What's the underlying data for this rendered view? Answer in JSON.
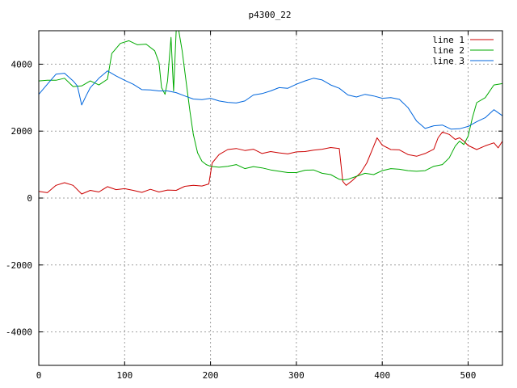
{
  "chart_data": {
    "type": "line",
    "title": "p4300_22",
    "xlim": [
      0,
      540
    ],
    "ylim": [
      -5000,
      5000
    ],
    "x_ticks": [
      0,
      100,
      200,
      300,
      400,
      500
    ],
    "y_ticks": [
      -4000,
      -2000,
      0,
      2000,
      4000
    ],
    "grid": true,
    "legend_position": "top-right",
    "series": [
      {
        "name": "line 1",
        "color": "#cc0000",
        "points": [
          [
            0,
            200
          ],
          [
            10,
            160
          ],
          [
            20,
            380
          ],
          [
            30,
            460
          ],
          [
            40,
            380
          ],
          [
            50,
            120
          ],
          [
            60,
            230
          ],
          [
            70,
            180
          ],
          [
            80,
            340
          ],
          [
            90,
            250
          ],
          [
            100,
            280
          ],
          [
            110,
            230
          ],
          [
            120,
            170
          ],
          [
            130,
            260
          ],
          [
            140,
            180
          ],
          [
            150,
            240
          ],
          [
            160,
            230
          ],
          [
            170,
            350
          ],
          [
            180,
            380
          ],
          [
            190,
            360
          ],
          [
            198,
            420
          ],
          [
            202,
            1050
          ],
          [
            210,
            1300
          ],
          [
            220,
            1450
          ],
          [
            230,
            1480
          ],
          [
            240,
            1420
          ],
          [
            250,
            1460
          ],
          [
            260,
            1330
          ],
          [
            270,
            1390
          ],
          [
            280,
            1350
          ],
          [
            290,
            1320
          ],
          [
            300,
            1380
          ],
          [
            310,
            1390
          ],
          [
            320,
            1430
          ],
          [
            330,
            1460
          ],
          [
            340,
            1510
          ],
          [
            350,
            1480
          ],
          [
            354,
            500
          ],
          [
            358,
            380
          ],
          [
            365,
            520
          ],
          [
            375,
            760
          ],
          [
            382,
            1050
          ],
          [
            390,
            1550
          ],
          [
            394,
            1800
          ],
          [
            400,
            1580
          ],
          [
            410,
            1450
          ],
          [
            420,
            1440
          ],
          [
            430,
            1300
          ],
          [
            440,
            1250
          ],
          [
            450,
            1330
          ],
          [
            460,
            1460
          ],
          [
            465,
            1800
          ],
          [
            470,
            1970
          ],
          [
            478,
            1900
          ],
          [
            485,
            1750
          ],
          [
            490,
            1800
          ],
          [
            495,
            1700
          ],
          [
            500,
            1570
          ],
          [
            510,
            1450
          ],
          [
            520,
            1560
          ],
          [
            530,
            1650
          ],
          [
            535,
            1500
          ],
          [
            540,
            1700
          ]
        ]
      },
      {
        "name": "line 2",
        "color": "#00aa00",
        "points": [
          [
            0,
            3500
          ],
          [
            10,
            3520
          ],
          [
            20,
            3520
          ],
          [
            30,
            3580
          ],
          [
            40,
            3330
          ],
          [
            50,
            3350
          ],
          [
            60,
            3500
          ],
          [
            70,
            3380
          ],
          [
            80,
            3550
          ],
          [
            85,
            4320
          ],
          [
            95,
            4620
          ],
          [
            105,
            4700
          ],
          [
            115,
            4580
          ],
          [
            125,
            4600
          ],
          [
            135,
            4400
          ],
          [
            140,
            4050
          ],
          [
            143,
            3300
          ],
          [
            147,
            3100
          ],
          [
            150,
            3500
          ],
          [
            154,
            4800
          ],
          [
            157,
            3200
          ],
          [
            160,
            5000
          ],
          [
            163,
            5000
          ],
          [
            167,
            4400
          ],
          [
            172,
            3400
          ],
          [
            176,
            2600
          ],
          [
            180,
            1900
          ],
          [
            185,
            1350
          ],
          [
            190,
            1100
          ],
          [
            195,
            1000
          ],
          [
            200,
            950
          ],
          [
            210,
            920
          ],
          [
            220,
            950
          ],
          [
            230,
            1000
          ],
          [
            240,
            880
          ],
          [
            250,
            940
          ],
          [
            260,
            900
          ],
          [
            270,
            840
          ],
          [
            280,
            800
          ],
          [
            290,
            760
          ],
          [
            300,
            760
          ],
          [
            310,
            830
          ],
          [
            320,
            840
          ],
          [
            330,
            740
          ],
          [
            340,
            700
          ],
          [
            350,
            560
          ],
          [
            355,
            540
          ],
          [
            360,
            560
          ],
          [
            370,
            650
          ],
          [
            380,
            740
          ],
          [
            390,
            700
          ],
          [
            400,
            820
          ],
          [
            410,
            880
          ],
          [
            420,
            860
          ],
          [
            430,
            820
          ],
          [
            440,
            800
          ],
          [
            450,
            820
          ],
          [
            460,
            950
          ],
          [
            470,
            1000
          ],
          [
            478,
            1200
          ],
          [
            485,
            1550
          ],
          [
            490,
            1700
          ],
          [
            495,
            1600
          ],
          [
            500,
            1850
          ],
          [
            505,
            2400
          ],
          [
            510,
            2850
          ],
          [
            520,
            3000
          ],
          [
            530,
            3380
          ],
          [
            540,
            3420
          ]
        ]
      },
      {
        "name": "line 3",
        "color": "#0066dd",
        "points": [
          [
            0,
            3100
          ],
          [
            10,
            3400
          ],
          [
            20,
            3700
          ],
          [
            30,
            3730
          ],
          [
            40,
            3500
          ],
          [
            45,
            3350
          ],
          [
            50,
            2780
          ],
          [
            55,
            3050
          ],
          [
            60,
            3300
          ],
          [
            70,
            3580
          ],
          [
            80,
            3800
          ],
          [
            90,
            3650
          ],
          [
            100,
            3520
          ],
          [
            110,
            3400
          ],
          [
            120,
            3240
          ],
          [
            130,
            3230
          ],
          [
            140,
            3200
          ],
          [
            150,
            3200
          ],
          [
            160,
            3150
          ],
          [
            170,
            3050
          ],
          [
            180,
            2960
          ],
          [
            190,
            2940
          ],
          [
            200,
            2980
          ],
          [
            210,
            2900
          ],
          [
            220,
            2860
          ],
          [
            230,
            2840
          ],
          [
            240,
            2900
          ],
          [
            250,
            3080
          ],
          [
            260,
            3120
          ],
          [
            270,
            3200
          ],
          [
            280,
            3300
          ],
          [
            290,
            3280
          ],
          [
            300,
            3400
          ],
          [
            310,
            3500
          ],
          [
            320,
            3580
          ],
          [
            330,
            3530
          ],
          [
            340,
            3380
          ],
          [
            350,
            3280
          ],
          [
            360,
            3080
          ],
          [
            370,
            3020
          ],
          [
            380,
            3100
          ],
          [
            390,
            3050
          ],
          [
            400,
            2980
          ],
          [
            410,
            3000
          ],
          [
            420,
            2950
          ],
          [
            430,
            2700
          ],
          [
            440,
            2300
          ],
          [
            450,
            2080
          ],
          [
            460,
            2160
          ],
          [
            470,
            2180
          ],
          [
            480,
            2060
          ],
          [
            490,
            2070
          ],
          [
            500,
            2140
          ],
          [
            510,
            2280
          ],
          [
            520,
            2400
          ],
          [
            530,
            2640
          ],
          [
            540,
            2460
          ]
        ]
      }
    ]
  }
}
